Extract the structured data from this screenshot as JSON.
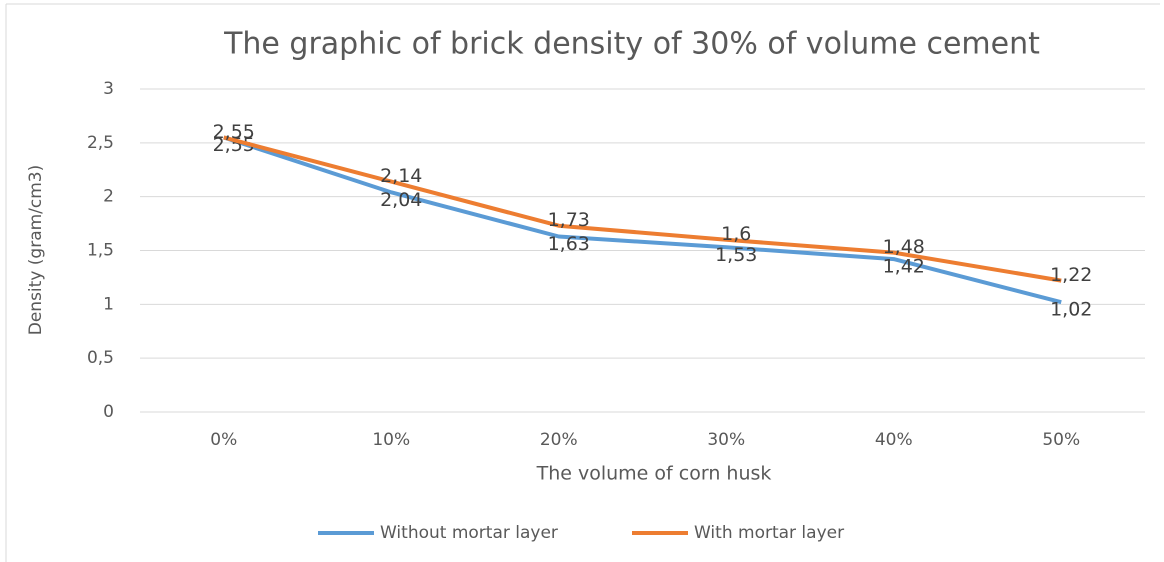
{
  "chart_data": {
    "type": "line",
    "title": "The graphic of brick density of 30% of volume cement",
    "x_label": "The volume of corn husk",
    "y_label": "Density (gram/cm3)",
    "categories": [
      "0%",
      "10%",
      "20%",
      "30%",
      "40%",
      "50%"
    ],
    "series": [
      {
        "name": "Without mortar layer",
        "color": "#5b9bd5",
        "values": [
          2.55,
          2.04,
          1.63,
          1.53,
          1.42,
          1.02
        ],
        "value_labels": [
          "2,55",
          "2,04",
          "1,63",
          "1,53",
          "1,42",
          "1,02"
        ]
      },
      {
        "name": "With mortar layer",
        "color": "#ed7d31",
        "values": [
          2.55,
          2.14,
          1.73,
          1.6,
          1.48,
          1.22
        ],
        "value_labels": [
          "2,55",
          "2,14",
          "1,73",
          "1,6",
          "1,48",
          "1,22"
        ]
      }
    ],
    "ylim": [
      0,
      3
    ],
    "yticks": [
      0,
      {
        "value": 0.5,
        "label": "0,5"
      },
      1,
      {
        "value": 1.5,
        "label": "1,5"
      },
      2,
      {
        "value": 2.5,
        "label": "2,5"
      },
      3
    ],
    "grid": true,
    "legend": "bottom"
  }
}
